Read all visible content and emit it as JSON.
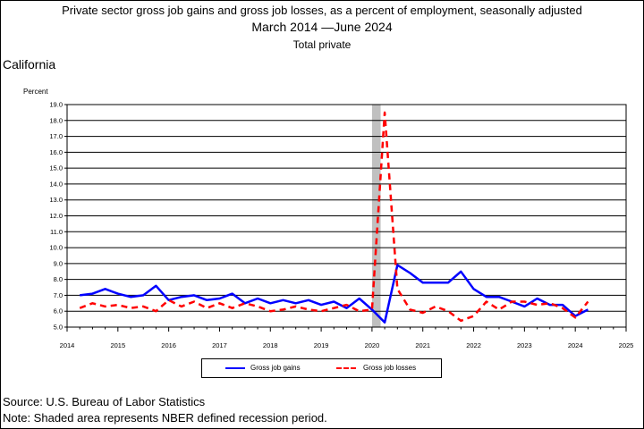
{
  "header": {
    "title_line1": "Private sector gross job gains and gross job losses, as a percent of employment, seasonally adjusted",
    "title_line2": "March 2014 —June 2024",
    "title_line3": "Total private",
    "region": "California"
  },
  "footer": {
    "source": "Source: U.S. Bureau of Labor Statistics",
    "note": "Note: Shaded area represents NBER defined recession period."
  },
  "chart_data": {
    "type": "line",
    "title": "Private sector gross job gains and gross job losses, as a percent of employment, seasonally adjusted",
    "subtitle": "Total private",
    "xlabel": "",
    "ylabel": "Percent",
    "xlim": [
      2014,
      2025
    ],
    "ylim": [
      5.0,
      19.0
    ],
    "x_ticks": [
      "2014",
      "2015",
      "2016",
      "2017",
      "2018",
      "2019",
      "2020",
      "2021",
      "2022",
      "2023",
      "2024",
      "2025"
    ],
    "y_ticks": [
      "5.0",
      "6.0",
      "7.0",
      "8.0",
      "9.0",
      "10.0",
      "11.0",
      "12.0",
      "13.0",
      "14.0",
      "15.0",
      "16.0",
      "17.0",
      "18.0",
      "19.0"
    ],
    "grid": "horizontal",
    "legend_position": "bottom",
    "recession": {
      "start": 2020.0,
      "end": 2020.17,
      "color": "#c0c0c0"
    },
    "x": [
      2014.25,
      2014.5,
      2014.75,
      2015.0,
      2015.25,
      2015.5,
      2015.75,
      2016.0,
      2016.25,
      2016.5,
      2016.75,
      2017.0,
      2017.25,
      2017.5,
      2017.75,
      2018.0,
      2018.25,
      2018.5,
      2018.75,
      2019.0,
      2019.25,
      2019.5,
      2019.75,
      2020.0,
      2020.25,
      2020.5,
      2020.75,
      2021.0,
      2021.25,
      2021.5,
      2021.75,
      2022.0,
      2022.25,
      2022.5,
      2022.75,
      2023.0,
      2023.25,
      2023.5,
      2023.75,
      2024.0,
      2024.25
    ],
    "series": [
      {
        "name": "Gross job gains",
        "color": "#0000ff",
        "dash": "solid",
        "values": [
          7.0,
          7.1,
          7.4,
          7.1,
          6.9,
          7.0,
          7.6,
          6.7,
          6.9,
          7.0,
          6.7,
          6.8,
          7.1,
          6.5,
          6.8,
          6.5,
          6.7,
          6.5,
          6.7,
          6.4,
          6.6,
          6.2,
          6.8,
          6.1,
          5.3,
          8.9,
          8.4,
          7.8,
          7.8,
          7.8,
          8.5,
          7.4,
          6.9,
          6.9,
          6.6,
          6.3,
          6.8,
          6.4,
          6.4,
          5.7,
          6.1
        ]
      },
      {
        "name": "Gross job losses",
        "color": "#ff0000",
        "dash": "dashed",
        "values": [
          6.2,
          6.5,
          6.3,
          6.4,
          6.2,
          6.3,
          6.0,
          6.7,
          6.3,
          6.6,
          6.2,
          6.5,
          6.2,
          6.5,
          6.3,
          6.0,
          6.1,
          6.3,
          6.1,
          6.0,
          6.2,
          6.4,
          6.0,
          6.1,
          18.5,
          7.4,
          6.1,
          5.9,
          6.3,
          6.0,
          5.4,
          5.7,
          6.6,
          6.1,
          6.6,
          6.6,
          6.4,
          6.5,
          6.2,
          5.6,
          6.6
        ]
      }
    ]
  }
}
